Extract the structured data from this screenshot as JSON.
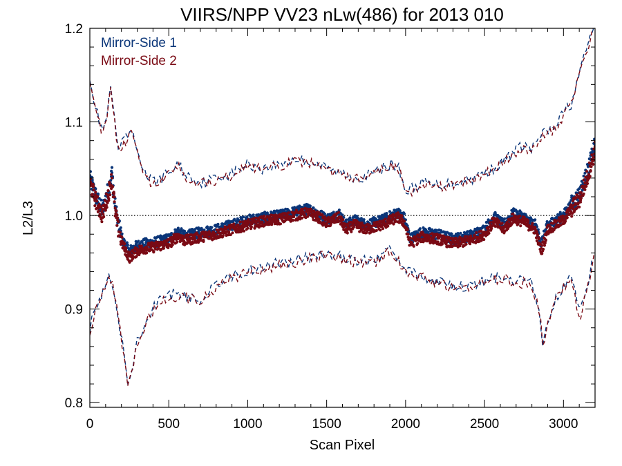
{
  "chart_data": {
    "type": "scatter",
    "title": "VIIRS/NPP VV23 nLw(486) for 2013 010",
    "xlabel": "Scan Pixel",
    "ylabel": "L2/L3",
    "xlim": [
      0,
      3200
    ],
    "ylim": [
      0.795,
      1.2
    ],
    "x_ticks": [
      0,
      500,
      1000,
      1500,
      2000,
      2500,
      3000
    ],
    "y_ticks": [
      0.8,
      0.9,
      1.0,
      1.1,
      1.2
    ],
    "x_tick_labels": [
      "0",
      "500",
      "1000",
      "1500",
      "2000",
      "2500",
      "3000"
    ],
    "y_tick_labels": [
      "0.8",
      "0.9",
      "1.0",
      "1.1",
      "1.2"
    ],
    "reference_line": {
      "y": 1.0,
      "style": "dotted"
    },
    "legend_position": "top-left",
    "colors": {
      "mirror_side_1": "#0a3578",
      "mirror_side_2": "#7a0a14",
      "reference": "#000000"
    },
    "series": [
      {
        "name": "Mirror-Side 1",
        "color": "#0a3578",
        "median_points": [
          [
            0,
            1.04
          ],
          [
            40,
            1.02
          ],
          [
            80,
            1.005
          ],
          [
            120,
            1.03
          ],
          [
            140,
            1.045
          ],
          [
            160,
            1.01
          ],
          [
            180,
            0.99
          ],
          [
            210,
            0.972
          ],
          [
            250,
            0.962
          ],
          [
            300,
            0.968
          ],
          [
            350,
            0.97
          ],
          [
            400,
            0.971
          ],
          [
            500,
            0.975
          ],
          [
            560,
            0.983
          ],
          [
            600,
            0.978
          ],
          [
            700,
            0.982
          ],
          [
            800,
            0.985
          ],
          [
            900,
            0.99
          ],
          [
            1000,
            0.995
          ],
          [
            1100,
            0.998
          ],
          [
            1200,
            1.0
          ],
          [
            1300,
            1.004
          ],
          [
            1380,
            1.007
          ],
          [
            1450,
            1.002
          ],
          [
            1500,
            0.996
          ],
          [
            1580,
            1.002
          ],
          [
            1620,
            0.99
          ],
          [
            1680,
            0.995
          ],
          [
            1750,
            0.99
          ],
          [
            1850,
            0.995
          ],
          [
            1950,
            1.003
          ],
          [
            1990,
            0.998
          ],
          [
            2030,
            0.975
          ],
          [
            2100,
            0.982
          ],
          [
            2200,
            0.98
          ],
          [
            2300,
            0.975
          ],
          [
            2400,
            0.978
          ],
          [
            2500,
            0.985
          ],
          [
            2560,
            0.999
          ],
          [
            2620,
            0.99
          ],
          [
            2680,
            1.002
          ],
          [
            2750,
            0.998
          ],
          [
            2820,
            0.99
          ],
          [
            2860,
            0.97
          ],
          [
            2900,
            0.99
          ],
          [
            2950,
            0.995
          ],
          [
            3000,
            1.0
          ],
          [
            3050,
            1.012
          ],
          [
            3100,
            1.022
          ],
          [
            3150,
            1.045
          ],
          [
            3200,
            1.075
          ]
        ],
        "upper_envelope": [
          [
            0,
            1.15
          ],
          [
            30,
            1.12
          ],
          [
            60,
            1.1
          ],
          [
            90,
            1.09
          ],
          [
            120,
            1.12
          ],
          [
            130,
            1.14
          ],
          [
            150,
            1.11
          ],
          [
            180,
            1.07
          ],
          [
            220,
            1.08
          ],
          [
            260,
            1.09
          ],
          [
            300,
            1.07
          ],
          [
            350,
            1.045
          ],
          [
            400,
            1.035
          ],
          [
            450,
            1.04
          ],
          [
            500,
            1.045
          ],
          [
            560,
            1.055
          ],
          [
            600,
            1.045
          ],
          [
            700,
            1.035
          ],
          [
            800,
            1.04
          ],
          [
            900,
            1.045
          ],
          [
            1000,
            1.055
          ],
          [
            1100,
            1.05
          ],
          [
            1200,
            1.055
          ],
          [
            1300,
            1.06
          ],
          [
            1400,
            1.058
          ],
          [
            1500,
            1.05
          ],
          [
            1600,
            1.045
          ],
          [
            1700,
            1.04
          ],
          [
            1800,
            1.045
          ],
          [
            1900,
            1.055
          ],
          [
            1960,
            1.05
          ],
          [
            2000,
            1.025
          ],
          [
            2050,
            1.03
          ],
          [
            2100,
            1.035
          ],
          [
            2200,
            1.032
          ],
          [
            2300,
            1.035
          ],
          [
            2400,
            1.038
          ],
          [
            2500,
            1.045
          ],
          [
            2600,
            1.055
          ],
          [
            2700,
            1.07
          ],
          [
            2750,
            1.075
          ],
          [
            2800,
            1.07
          ],
          [
            2850,
            1.085
          ],
          [
            2900,
            1.09
          ],
          [
            2950,
            1.095
          ],
          [
            3000,
            1.11
          ],
          [
            3050,
            1.12
          ],
          [
            3100,
            1.15
          ],
          [
            3150,
            1.18
          ],
          [
            3200,
            1.21
          ]
        ],
        "lower_envelope": [
          [
            0,
            0.88
          ],
          [
            30,
            0.895
          ],
          [
            60,
            0.91
          ],
          [
            90,
            0.92
          ],
          [
            120,
            0.935
          ],
          [
            150,
            0.925
          ],
          [
            180,
            0.89
          ],
          [
            210,
            0.86
          ],
          [
            240,
            0.825
          ],
          [
            270,
            0.84
          ],
          [
            300,
            0.865
          ],
          [
            350,
            0.885
          ],
          [
            400,
            0.9
          ],
          [
            450,
            0.91
          ],
          [
            500,
            0.915
          ],
          [
            600,
            0.915
          ],
          [
            700,
            0.91
          ],
          [
            800,
            0.925
          ],
          [
            900,
            0.935
          ],
          [
            1000,
            0.94
          ],
          [
            1100,
            0.945
          ],
          [
            1200,
            0.95
          ],
          [
            1300,
            0.952
          ],
          [
            1400,
            0.956
          ],
          [
            1500,
            0.96
          ],
          [
            1600,
            0.955
          ],
          [
            1700,
            0.952
          ],
          [
            1800,
            0.95
          ],
          [
            1900,
            0.965
          ],
          [
            1950,
            0.955
          ],
          [
            2000,
            0.94
          ],
          [
            2100,
            0.935
          ],
          [
            2200,
            0.93
          ],
          [
            2300,
            0.925
          ],
          [
            2400,
            0.925
          ],
          [
            2500,
            0.93
          ],
          [
            2600,
            0.935
          ],
          [
            2700,
            0.93
          ],
          [
            2800,
            0.93
          ],
          [
            2850,
            0.895
          ],
          [
            2870,
            0.86
          ],
          [
            2900,
            0.89
          ],
          [
            2950,
            0.91
          ],
          [
            3000,
            0.925
          ],
          [
            3050,
            0.935
          ],
          [
            3100,
            0.905
          ],
          [
            3150,
            0.92
          ],
          [
            3200,
            0.965
          ]
        ]
      },
      {
        "name": "Mirror-Side 2",
        "color": "#7a0a14",
        "median_points": [
          [
            0,
            1.035
          ],
          [
            40,
            1.015
          ],
          [
            80,
            1.0
          ],
          [
            120,
            1.025
          ],
          [
            140,
            1.04
          ],
          [
            160,
            1.005
          ],
          [
            180,
            0.985
          ],
          [
            210,
            0.968
          ],
          [
            250,
            0.955
          ],
          [
            300,
            0.962
          ],
          [
            350,
            0.965
          ],
          [
            400,
            0.966
          ],
          [
            500,
            0.97
          ],
          [
            560,
            0.978
          ],
          [
            600,
            0.973
          ],
          [
            700,
            0.977
          ],
          [
            800,
            0.98
          ],
          [
            900,
            0.985
          ],
          [
            1000,
            0.99
          ],
          [
            1100,
            0.994
          ],
          [
            1200,
            0.996
          ],
          [
            1300,
            1.0
          ],
          [
            1380,
            1.003
          ],
          [
            1450,
            0.998
          ],
          [
            1500,
            0.992
          ],
          [
            1580,
            0.998
          ],
          [
            1620,
            0.985
          ],
          [
            1680,
            0.99
          ],
          [
            1750,
            0.985
          ],
          [
            1850,
            0.99
          ],
          [
            1950,
            0.998
          ],
          [
            1990,
            0.993
          ],
          [
            2030,
            0.97
          ],
          [
            2100,
            0.977
          ],
          [
            2200,
            0.975
          ],
          [
            2300,
            0.97
          ],
          [
            2400,
            0.973
          ],
          [
            2500,
            0.98
          ],
          [
            2560,
            0.994
          ],
          [
            2620,
            0.985
          ],
          [
            2680,
            0.997
          ],
          [
            2750,
            0.993
          ],
          [
            2820,
            0.985
          ],
          [
            2860,
            0.962
          ],
          [
            2900,
            0.985
          ],
          [
            2950,
            0.99
          ],
          [
            3000,
            0.995
          ],
          [
            3050,
            1.007
          ],
          [
            3100,
            1.017
          ],
          [
            3150,
            1.04
          ],
          [
            3200,
            1.07
          ]
        ],
        "upper_envelope": [
          [
            0,
            1.148
          ],
          [
            30,
            1.118
          ],
          [
            60,
            1.098
          ],
          [
            90,
            1.088
          ],
          [
            120,
            1.118
          ],
          [
            130,
            1.138
          ],
          [
            150,
            1.108
          ],
          [
            180,
            1.068
          ],
          [
            220,
            1.078
          ],
          [
            260,
            1.088
          ],
          [
            300,
            1.068
          ],
          [
            350,
            1.043
          ],
          [
            400,
            1.033
          ],
          [
            450,
            1.038
          ],
          [
            500,
            1.043
          ],
          [
            560,
            1.053
          ],
          [
            600,
            1.043
          ],
          [
            700,
            1.033
          ],
          [
            800,
            1.038
          ],
          [
            900,
            1.043
          ],
          [
            1000,
            1.053
          ],
          [
            1100,
            1.048
          ],
          [
            1200,
            1.053
          ],
          [
            1300,
            1.058
          ],
          [
            1400,
            1.056
          ],
          [
            1500,
            1.048
          ],
          [
            1600,
            1.043
          ],
          [
            1700,
            1.038
          ],
          [
            1800,
            1.043
          ],
          [
            1900,
            1.053
          ],
          [
            1960,
            1.048
          ],
          [
            2000,
            1.023
          ],
          [
            2050,
            1.028
          ],
          [
            2100,
            1.033
          ],
          [
            2200,
            1.03
          ],
          [
            2300,
            1.033
          ],
          [
            2400,
            1.036
          ],
          [
            2500,
            1.043
          ],
          [
            2600,
            1.053
          ],
          [
            2700,
            1.068
          ],
          [
            2750,
            1.073
          ],
          [
            2800,
            1.068
          ],
          [
            2850,
            1.083
          ],
          [
            2900,
            1.088
          ],
          [
            2950,
            1.093
          ],
          [
            3000,
            1.108
          ],
          [
            3050,
            1.118
          ],
          [
            3100,
            1.148
          ],
          [
            3150,
            1.178
          ],
          [
            3200,
            1.205
          ]
        ],
        "lower_envelope": [
          [
            0,
            0.878
          ],
          [
            30,
            0.893
          ],
          [
            60,
            0.908
          ],
          [
            90,
            0.918
          ],
          [
            120,
            0.933
          ],
          [
            150,
            0.923
          ],
          [
            180,
            0.888
          ],
          [
            210,
            0.858
          ],
          [
            240,
            0.823
          ],
          [
            270,
            0.838
          ],
          [
            300,
            0.863
          ],
          [
            350,
            0.883
          ],
          [
            400,
            0.898
          ],
          [
            450,
            0.908
          ],
          [
            500,
            0.913
          ],
          [
            600,
            0.913
          ],
          [
            700,
            0.908
          ],
          [
            800,
            0.923
          ],
          [
            900,
            0.933
          ],
          [
            1000,
            0.938
          ],
          [
            1100,
            0.943
          ],
          [
            1200,
            0.948
          ],
          [
            1300,
            0.95
          ],
          [
            1400,
            0.954
          ],
          [
            1500,
            0.958
          ],
          [
            1600,
            0.953
          ],
          [
            1700,
            0.95
          ],
          [
            1800,
            0.948
          ],
          [
            1900,
            0.963
          ],
          [
            1950,
            0.953
          ],
          [
            2000,
            0.938
          ],
          [
            2100,
            0.933
          ],
          [
            2200,
            0.928
          ],
          [
            2300,
            0.923
          ],
          [
            2400,
            0.923
          ],
          [
            2500,
            0.928
          ],
          [
            2600,
            0.933
          ],
          [
            2700,
            0.928
          ],
          [
            2800,
            0.928
          ],
          [
            2850,
            0.893
          ],
          [
            2870,
            0.862
          ],
          [
            2900,
            0.888
          ],
          [
            2950,
            0.908
          ],
          [
            3000,
            0.923
          ],
          [
            3050,
            0.933
          ],
          [
            3100,
            0.89
          ],
          [
            3150,
            0.918
          ],
          [
            3200,
            0.962
          ]
        ]
      }
    ]
  }
}
